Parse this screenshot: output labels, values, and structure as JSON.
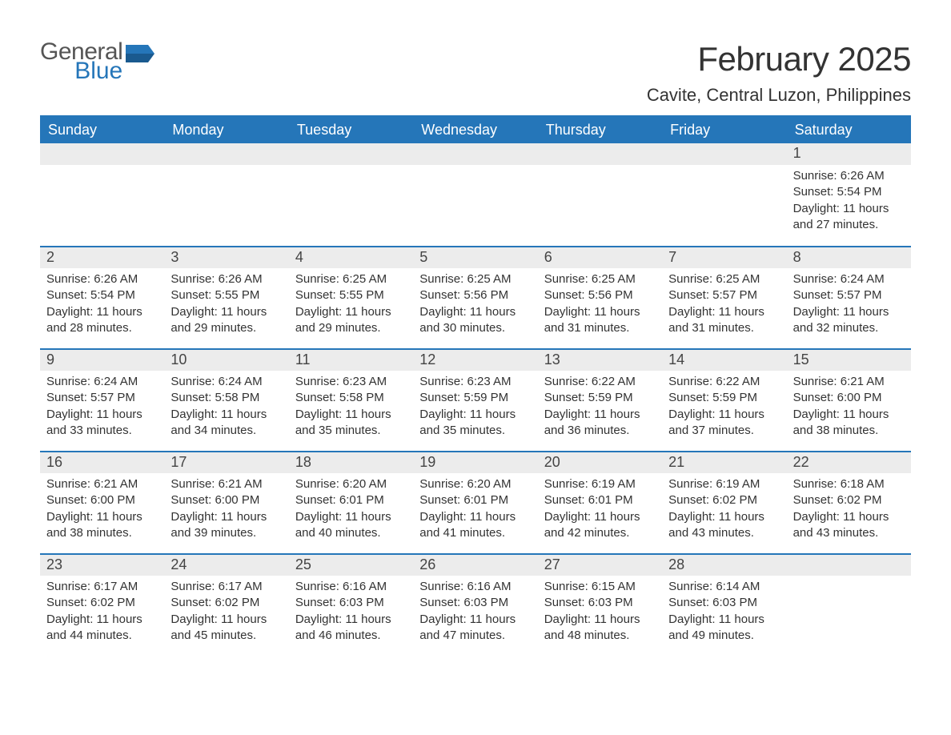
{
  "brand": {
    "word1": "General",
    "word2": "Blue",
    "flag_color": "#2576b9"
  },
  "title": "February 2025",
  "location": "Cavite, Central Luzon, Philippines",
  "colors": {
    "accent": "#2576b9",
    "band": "#ececec",
    "text": "#333333",
    "bg": "#ffffff"
  },
  "weekdays": [
    "Sunday",
    "Monday",
    "Tuesday",
    "Wednesday",
    "Thursday",
    "Friday",
    "Saturday"
  ],
  "weeks": [
    [
      null,
      null,
      null,
      null,
      null,
      null,
      {
        "n": "1",
        "sunrise": "Sunrise: 6:26 AM",
        "sunset": "Sunset: 5:54 PM",
        "day1": "Daylight: 11 hours",
        "day2": "and 27 minutes."
      }
    ],
    [
      {
        "n": "2",
        "sunrise": "Sunrise: 6:26 AM",
        "sunset": "Sunset: 5:54 PM",
        "day1": "Daylight: 11 hours",
        "day2": "and 28 minutes."
      },
      {
        "n": "3",
        "sunrise": "Sunrise: 6:26 AM",
        "sunset": "Sunset: 5:55 PM",
        "day1": "Daylight: 11 hours",
        "day2": "and 29 minutes."
      },
      {
        "n": "4",
        "sunrise": "Sunrise: 6:25 AM",
        "sunset": "Sunset: 5:55 PM",
        "day1": "Daylight: 11 hours",
        "day2": "and 29 minutes."
      },
      {
        "n": "5",
        "sunrise": "Sunrise: 6:25 AM",
        "sunset": "Sunset: 5:56 PM",
        "day1": "Daylight: 11 hours",
        "day2": "and 30 minutes."
      },
      {
        "n": "6",
        "sunrise": "Sunrise: 6:25 AM",
        "sunset": "Sunset: 5:56 PM",
        "day1": "Daylight: 11 hours",
        "day2": "and 31 minutes."
      },
      {
        "n": "7",
        "sunrise": "Sunrise: 6:25 AM",
        "sunset": "Sunset: 5:57 PM",
        "day1": "Daylight: 11 hours",
        "day2": "and 31 minutes."
      },
      {
        "n": "8",
        "sunrise": "Sunrise: 6:24 AM",
        "sunset": "Sunset: 5:57 PM",
        "day1": "Daylight: 11 hours",
        "day2": "and 32 minutes."
      }
    ],
    [
      {
        "n": "9",
        "sunrise": "Sunrise: 6:24 AM",
        "sunset": "Sunset: 5:57 PM",
        "day1": "Daylight: 11 hours",
        "day2": "and 33 minutes."
      },
      {
        "n": "10",
        "sunrise": "Sunrise: 6:24 AM",
        "sunset": "Sunset: 5:58 PM",
        "day1": "Daylight: 11 hours",
        "day2": "and 34 minutes."
      },
      {
        "n": "11",
        "sunrise": "Sunrise: 6:23 AM",
        "sunset": "Sunset: 5:58 PM",
        "day1": "Daylight: 11 hours",
        "day2": "and 35 minutes."
      },
      {
        "n": "12",
        "sunrise": "Sunrise: 6:23 AM",
        "sunset": "Sunset: 5:59 PM",
        "day1": "Daylight: 11 hours",
        "day2": "and 35 minutes."
      },
      {
        "n": "13",
        "sunrise": "Sunrise: 6:22 AM",
        "sunset": "Sunset: 5:59 PM",
        "day1": "Daylight: 11 hours",
        "day2": "and 36 minutes."
      },
      {
        "n": "14",
        "sunrise": "Sunrise: 6:22 AM",
        "sunset": "Sunset: 5:59 PM",
        "day1": "Daylight: 11 hours",
        "day2": "and 37 minutes."
      },
      {
        "n": "15",
        "sunrise": "Sunrise: 6:21 AM",
        "sunset": "Sunset: 6:00 PM",
        "day1": "Daylight: 11 hours",
        "day2": "and 38 minutes."
      }
    ],
    [
      {
        "n": "16",
        "sunrise": "Sunrise: 6:21 AM",
        "sunset": "Sunset: 6:00 PM",
        "day1": "Daylight: 11 hours",
        "day2": "and 38 minutes."
      },
      {
        "n": "17",
        "sunrise": "Sunrise: 6:21 AM",
        "sunset": "Sunset: 6:00 PM",
        "day1": "Daylight: 11 hours",
        "day2": "and 39 minutes."
      },
      {
        "n": "18",
        "sunrise": "Sunrise: 6:20 AM",
        "sunset": "Sunset: 6:01 PM",
        "day1": "Daylight: 11 hours",
        "day2": "and 40 minutes."
      },
      {
        "n": "19",
        "sunrise": "Sunrise: 6:20 AM",
        "sunset": "Sunset: 6:01 PM",
        "day1": "Daylight: 11 hours",
        "day2": "and 41 minutes."
      },
      {
        "n": "20",
        "sunrise": "Sunrise: 6:19 AM",
        "sunset": "Sunset: 6:01 PM",
        "day1": "Daylight: 11 hours",
        "day2": "and 42 minutes."
      },
      {
        "n": "21",
        "sunrise": "Sunrise: 6:19 AM",
        "sunset": "Sunset: 6:02 PM",
        "day1": "Daylight: 11 hours",
        "day2": "and 43 minutes."
      },
      {
        "n": "22",
        "sunrise": "Sunrise: 6:18 AM",
        "sunset": "Sunset: 6:02 PM",
        "day1": "Daylight: 11 hours",
        "day2": "and 43 minutes."
      }
    ],
    [
      {
        "n": "23",
        "sunrise": "Sunrise: 6:17 AM",
        "sunset": "Sunset: 6:02 PM",
        "day1": "Daylight: 11 hours",
        "day2": "and 44 minutes."
      },
      {
        "n": "24",
        "sunrise": "Sunrise: 6:17 AM",
        "sunset": "Sunset: 6:02 PM",
        "day1": "Daylight: 11 hours",
        "day2": "and 45 minutes."
      },
      {
        "n": "25",
        "sunrise": "Sunrise: 6:16 AM",
        "sunset": "Sunset: 6:03 PM",
        "day1": "Daylight: 11 hours",
        "day2": "and 46 minutes."
      },
      {
        "n": "26",
        "sunrise": "Sunrise: 6:16 AM",
        "sunset": "Sunset: 6:03 PM",
        "day1": "Daylight: 11 hours",
        "day2": "and 47 minutes."
      },
      {
        "n": "27",
        "sunrise": "Sunrise: 6:15 AM",
        "sunset": "Sunset: 6:03 PM",
        "day1": "Daylight: 11 hours",
        "day2": "and 48 minutes."
      },
      {
        "n": "28",
        "sunrise": "Sunrise: 6:14 AM",
        "sunset": "Sunset: 6:03 PM",
        "day1": "Daylight: 11 hours",
        "day2": "and 49 minutes."
      },
      null
    ]
  ]
}
